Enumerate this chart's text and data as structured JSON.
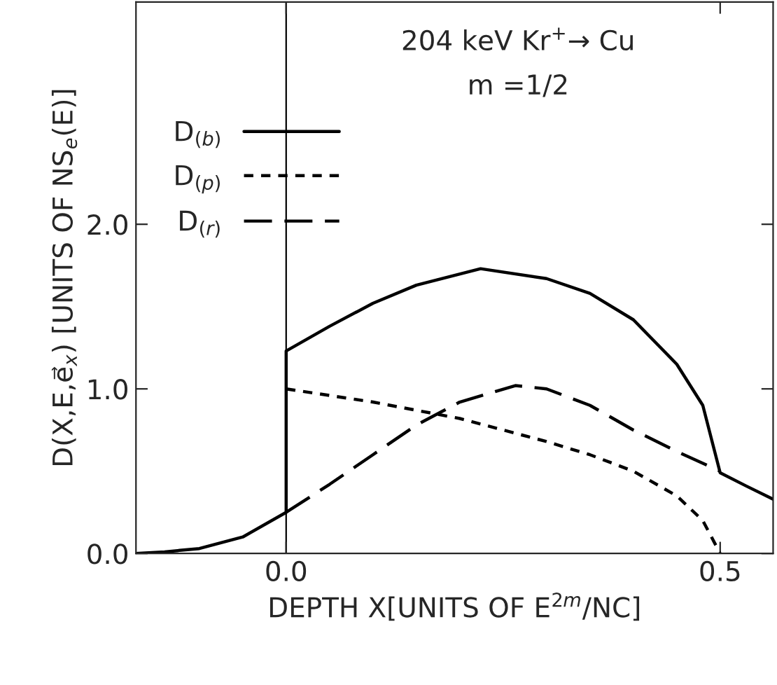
{
  "chart_data": {
    "type": "line",
    "title": "204 keV Kr$^{+}$→ Cu",
    "subtitle": "m =1/2",
    "xlabel": "DEPTH X[UNITS OF E$^{2m}$/NC]",
    "ylabel": "D(X,E,e⃗$_{x}$) [UNITS OF NS$_{e}$(E)]",
    "xlim": [
      -0.173,
      0.561
    ],
    "ylim": [
      0,
      3.35
    ],
    "xticks": [
      {
        "value": 0,
        "label": "0.0"
      },
      {
        "value": 0.5,
        "label": "0.5"
      }
    ],
    "yticks": [
      {
        "value": 0,
        "label": "0.0"
      },
      {
        "value": 1,
        "label": "1.0"
      },
      {
        "value": 2,
        "label": "2.0"
      }
    ],
    "grid": false,
    "legend": "top left",
    "ref_lines": [
      {
        "axis": "x",
        "value": 0,
        "color": "#000000"
      }
    ],
    "series": [
      {
        "name": "D$_{(b)}$",
        "color": "#000000",
        "line_style": "solid",
        "x": [
          -0.173,
          -0.14,
          -0.1,
          -0.05,
          0,
          0,
          0.05,
          0.1,
          0.15,
          0.224,
          0.3,
          0.35,
          0.4,
          0.45,
          0.48,
          0.5,
          0.53,
          0.561
        ],
        "values": [
          0,
          0.01,
          0.03,
          0.1,
          0.25,
          1.23,
          1.38,
          1.52,
          1.63,
          1.73,
          1.67,
          1.58,
          1.42,
          1.15,
          0.9,
          0.49,
          0.41,
          0.33
        ]
      },
      {
        "name": "D$_{(p)}$",
        "color": "#000000",
        "line_style": "dotted",
        "x": [
          0,
          0.1,
          0.2,
          0.3,
          0.35,
          0.4,
          0.45,
          0.48,
          0.5
        ],
        "values": [
          1.0,
          0.92,
          0.82,
          0.68,
          0.6,
          0.5,
          0.35,
          0.2,
          0
        ]
      },
      {
        "name": "D$_{(r)}$",
        "color": "#000000",
        "line_style": "dashed",
        "x": [
          0,
          0.05,
          0.1,
          0.15,
          0.2,
          0.264,
          0.3,
          0.35,
          0.4,
          0.45,
          0.5
        ],
        "values": [
          0.25,
          0.42,
          0.6,
          0.78,
          0.92,
          1.02,
          1.0,
          0.9,
          0.75,
          0.62,
          0.5
        ]
      }
    ]
  }
}
